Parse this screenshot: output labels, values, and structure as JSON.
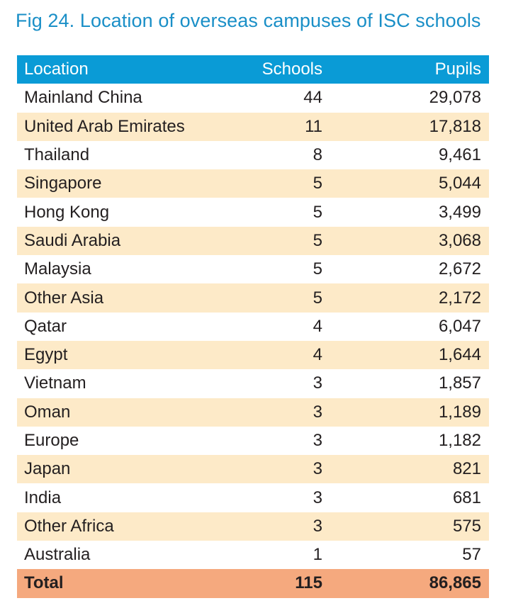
{
  "title": "Fig 24. Location of overseas campuses of ISC schools",
  "columns": {
    "location": "Location",
    "schools": "Schools",
    "pupils": "Pupils"
  },
  "rows": [
    {
      "location": "Mainland China",
      "schools": "44",
      "pupils": "29,078"
    },
    {
      "location": "United Arab Emirates",
      "schools": "11",
      "pupils": "17,818"
    },
    {
      "location": "Thailand",
      "schools": "8",
      "pupils": "9,461"
    },
    {
      "location": "Singapore",
      "schools": "5",
      "pupils": "5,044"
    },
    {
      "location": "Hong Kong",
      "schools": "5",
      "pupils": "3,499"
    },
    {
      "location": "Saudi Arabia",
      "schools": "5",
      "pupils": "3,068"
    },
    {
      "location": "Malaysia",
      "schools": "5",
      "pupils": "2,672"
    },
    {
      "location": "Other Asia",
      "schools": "5",
      "pupils": "2,172"
    },
    {
      "location": "Qatar",
      "schools": "4",
      "pupils": "6,047"
    },
    {
      "location": "Egypt",
      "schools": "4",
      "pupils": "1,644"
    },
    {
      "location": "Vietnam",
      "schools": "3",
      "pupils": "1,857"
    },
    {
      "location": "Oman",
      "schools": "3",
      "pupils": "1,189"
    },
    {
      "location": "Europe",
      "schools": "3",
      "pupils": "1,182"
    },
    {
      "location": "Japan",
      "schools": "3",
      "pupils": "821"
    },
    {
      "location": "India",
      "schools": "3",
      "pupils": "681"
    },
    {
      "location": "Other Africa",
      "schools": "3",
      "pupils": "575"
    },
    {
      "location": "Australia",
      "schools": "1",
      "pupils": "57"
    }
  ],
  "total": {
    "location": "Total",
    "schools": "115",
    "pupils": "86,865"
  },
  "colors": {
    "title": "#1a8fc7",
    "header": "#0a9bd6",
    "alt_row": "#fdeac8",
    "total_row": "#f5a97e"
  }
}
